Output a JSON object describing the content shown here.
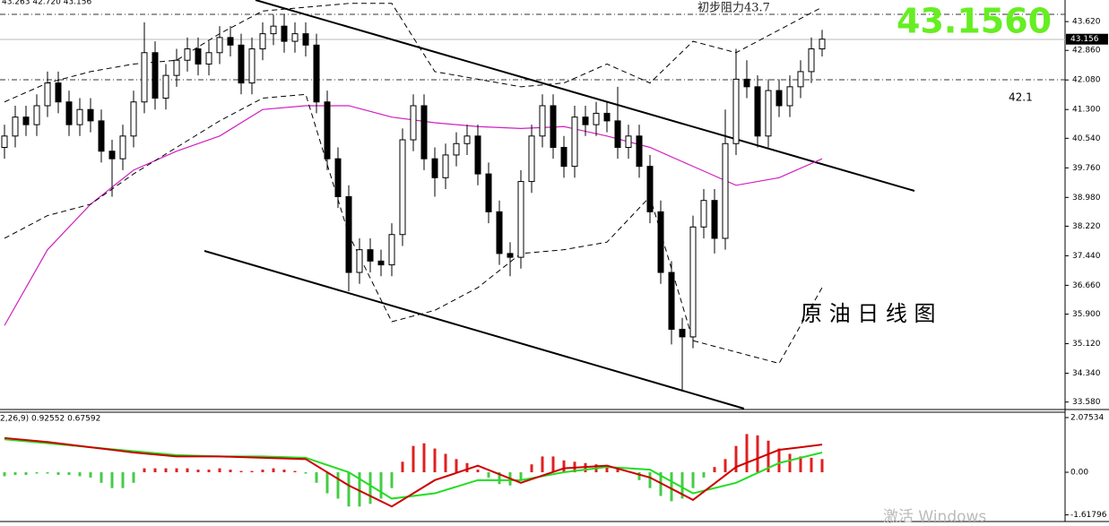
{
  "chart_data": [
    {
      "type": "candlestick",
      "header": "43.263 42.720 43.156",
      "open": [
        40.3,
        40.6,
        41.1,
        40.9,
        41.4,
        42.0,
        41.5,
        40.9,
        41.3,
        41.0,
        40.2,
        40.0,
        40.6,
        41.5,
        42.8,
        41.6,
        42.2,
        42.6,
        42.9,
        42.5,
        42.8,
        43.2,
        43.0,
        42.0,
        42.9,
        43.3,
        43.5,
        43.1,
        43.3,
        43.0,
        41.5,
        40.0,
        39.0,
        37.0,
        37.6,
        37.3,
        37.2,
        38.0,
        40.5,
        41.4,
        40.0,
        39.5,
        40.1,
        40.4,
        40.6,
        39.6,
        38.6,
        37.5,
        37.4,
        39.4,
        40.6,
        41.4,
        40.3,
        39.8,
        41.1,
        40.9,
        41.2,
        41.0,
        40.3,
        40.6,
        39.8,
        38.6,
        37.0,
        35.5,
        35.3,
        38.2,
        38.9,
        37.9,
        40.4,
        42.1,
        41.9,
        40.6,
        41.8,
        41.4,
        41.9,
        42.3,
        42.9
      ],
      "high": [
        40.9,
        41.4,
        41.4,
        41.7,
        42.3,
        42.3,
        41.8,
        41.6,
        41.6,
        41.3,
        40.5,
        40.9,
        41.8,
        43.6,
        43.1,
        42.5,
        42.9,
        43.2,
        43.2,
        43.1,
        43.5,
        43.5,
        43.3,
        43.2,
        43.6,
        43.8,
        43.8,
        43.6,
        43.6,
        43.3,
        41.8,
        40.3,
        39.3,
        37.9,
        37.9,
        37.6,
        38.3,
        40.8,
        41.7,
        41.7,
        40.3,
        40.4,
        40.7,
        40.9,
        40.9,
        39.9,
        38.9,
        37.8,
        39.7,
        40.9,
        41.7,
        41.7,
        40.6,
        41.4,
        41.4,
        41.5,
        41.5,
        41.9,
        40.9,
        40.9,
        40.1,
        38.9,
        37.3,
        35.8,
        38.5,
        39.2,
        39.2,
        41.3,
        42.9,
        42.6,
        42.2,
        42.1,
        42.1,
        42.2,
        42.6,
        43.2,
        43.4
      ],
      "low": [
        40.0,
        40.3,
        40.6,
        40.6,
        41.1,
        41.2,
        40.6,
        40.6,
        40.7,
        39.9,
        39.0,
        39.7,
        40.3,
        41.2,
        41.3,
        41.3,
        41.9,
        42.3,
        42.2,
        42.2,
        42.5,
        42.7,
        41.7,
        41.7,
        42.6,
        43.0,
        42.8,
        42.8,
        42.7,
        41.2,
        39.7,
        38.7,
        36.5,
        36.7,
        37.0,
        36.9,
        36.9,
        37.7,
        40.2,
        39.7,
        39.0,
        39.2,
        39.8,
        40.1,
        39.3,
        38.3,
        37.2,
        36.9,
        37.1,
        39.1,
        40.3,
        40.0,
        39.5,
        39.5,
        40.6,
        40.6,
        40.7,
        40.0,
        40.0,
        39.5,
        38.3,
        36.7,
        35.1,
        33.9,
        35.0,
        37.9,
        37.5,
        37.6,
        40.1,
        41.6,
        40.3,
        40.3,
        41.1,
        41.1,
        41.6,
        42.0,
        42.7
      ],
      "close": [
        40.6,
        41.1,
        40.9,
        41.4,
        42.0,
        41.5,
        40.9,
        41.3,
        41.0,
        40.2,
        40.0,
        40.6,
        41.5,
        42.8,
        41.6,
        42.2,
        42.6,
        42.9,
        42.5,
        42.8,
        43.2,
        43.0,
        42.0,
        42.9,
        43.3,
        43.5,
        43.1,
        43.3,
        43.0,
        41.5,
        40.0,
        39.0,
        37.0,
        37.6,
        37.3,
        37.2,
        38.0,
        40.5,
        41.4,
        40.0,
        39.5,
        40.1,
        40.4,
        40.6,
        39.6,
        38.6,
        37.5,
        37.4,
        39.4,
        40.6,
        41.4,
        40.3,
        39.8,
        41.1,
        40.9,
        41.2,
        41.0,
        40.3,
        40.6,
        39.8,
        38.6,
        37.0,
        35.5,
        35.3,
        38.2,
        38.9,
        37.9,
        40.4,
        42.1,
        41.9,
        40.6,
        41.8,
        41.4,
        41.9,
        42.3,
        42.9,
        43.156
      ],
      "up_color": "#ffffff",
      "down_color": "#000000",
      "ma": {
        "color": "#d020c0",
        "values": [
          35.6,
          37.6,
          38.8,
          39.7,
          40.2,
          40.6,
          41.3,
          41.4,
          41.4,
          41.1,
          40.95,
          40.85,
          40.8,
          40.85,
          40.6,
          40.3,
          39.8,
          39.3,
          39.5,
          40.0
        ]
      },
      "upper_band": {
        "color": "#000000",
        "values": [
          41.5,
          42.0,
          42.3,
          42.5,
          42.6,
          43.3,
          43.9,
          44.0,
          44.1,
          44.1,
          42.3,
          42.1,
          41.9,
          42.0,
          42.5,
          42.0,
          43.1,
          42.8,
          43.4,
          44.0
        ]
      },
      "lower_band": {
        "color": "#000000",
        "values": [
          37.9,
          38.5,
          38.8,
          39.6,
          40.3,
          41.0,
          41.6,
          41.7,
          38.0,
          35.7,
          36.0,
          36.6,
          37.5,
          37.6,
          37.8,
          39.0,
          35.2,
          34.9,
          34.6,
          36.6
        ]
      },
      "ylim": [
        33.43,
        44.19
      ],
      "yticks": [
        {
          "value": 43.62,
          "label": "43.620"
        },
        {
          "value": 42.86,
          "label": "42.860"
        },
        {
          "value": 42.08,
          "label": "42.080"
        },
        {
          "value": 41.3,
          "label": "41.300"
        },
        {
          "value": 40.54,
          "label": "40.540"
        },
        {
          "value": 39.76,
          "label": "39.760"
        },
        {
          "value": 38.98,
          "label": "38.980"
        },
        {
          "value": 38.22,
          "label": "38.220"
        },
        {
          "value": 37.44,
          "label": "37.440"
        },
        {
          "value": 36.66,
          "label": "36.660"
        },
        {
          "value": 35.9,
          "label": "35.900"
        },
        {
          "value": 35.12,
          "label": "35.120"
        },
        {
          "value": 34.34,
          "label": "34.340"
        },
        {
          "value": 33.58,
          "label": "33.580"
        }
      ],
      "price_tag": "43.156",
      "annotations": [
        "43.1560",
        "初步阻力43.7",
        "42.1",
        "原 油 日 线 图"
      ]
    },
    {
      "type": "macd",
      "label": "2,26,9) 0.92552 0.67592",
      "histogram": [
        -0.15,
        -0.1,
        -0.1,
        -0.05,
        -0.05,
        -0.1,
        -0.1,
        -0.15,
        -0.2,
        -0.4,
        -0.6,
        -0.6,
        -0.4,
        0.15,
        0.15,
        0.15,
        0.15,
        0.15,
        0.1,
        0.1,
        0.15,
        0.1,
        0.05,
        0.05,
        0.1,
        0.15,
        0.1,
        0.05,
        -0.05,
        -0.4,
        -0.8,
        -1.0,
        -1.3,
        -1.3,
        -1.2,
        -1.0,
        -0.6,
        0.4,
        1.0,
        1.1,
        0.9,
        0.7,
        0.5,
        0.35,
        0.1,
        -0.2,
        -0.45,
        -0.5,
        -0.3,
        0.3,
        0.6,
        0.6,
        0.45,
        0.4,
        0.35,
        0.3,
        0.25,
        0.15,
        0.05,
        -0.3,
        -0.6,
        -0.9,
        -1.1,
        -1.0,
        -0.6,
        -0.2,
        0.2,
        0.5,
        1.0,
        1.45,
        1.4,
        1.2,
        0.9,
        0.7,
        0.6,
        0.55,
        0.5
      ],
      "positive_color": "#e02020",
      "negative_color": "#44cc44",
      "macd": {
        "color": "#cc0000",
        "values": [
          1.3,
          1.15,
          0.95,
          0.75,
          0.6,
          0.6,
          0.55,
          0.5,
          -0.5,
          -1.3,
          -0.3,
          0.25,
          -0.4,
          0.15,
          0.25,
          -0.2,
          -1.05,
          0.2,
          0.85,
          1.05
        ]
      },
      "signal": {
        "color": "#22dd22",
        "values": [
          1.25,
          1.1,
          0.95,
          0.8,
          0.65,
          0.6,
          0.6,
          0.55,
          0.0,
          -1.0,
          -0.8,
          -0.3,
          -0.3,
          0.0,
          0.2,
          0.1,
          -0.8,
          -0.4,
          0.35,
          0.75
        ]
      },
      "ylim": [
        -1.87,
        2.28
      ],
      "yticks": [
        2.07534,
        {
          "value": 0,
          "label": "0.00"
        },
        -1.61796
      ]
    },
    {
      "type": "watermark",
      "text": "激活 Windows"
    }
  ]
}
